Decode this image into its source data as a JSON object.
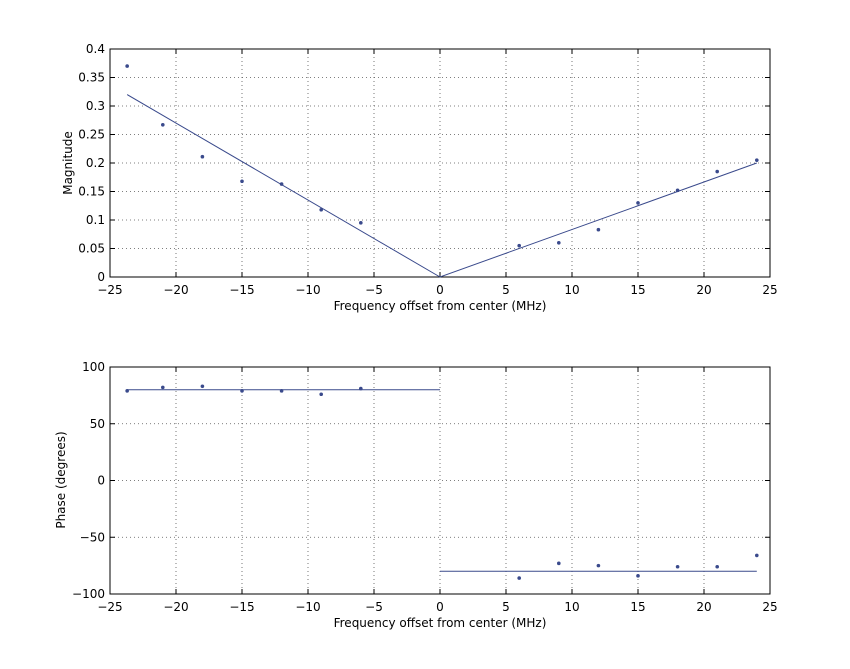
{
  "chart_data": [
    {
      "type": "scatter",
      "title": "",
      "xlabel": "Frequency offset from center (MHz)",
      "ylabel": "Magnitude",
      "xlim": [
        -25,
        25
      ],
      "ylim": [
        0,
        0.4
      ],
      "grid": true,
      "xticks": [
        -25,
        -20,
        -15,
        -10,
        -5,
        0,
        5,
        10,
        15,
        20,
        25
      ],
      "yticks": [
        0,
        0.05,
        0.1,
        0.15,
        0.2,
        0.25,
        0.3,
        0.35,
        0.4
      ],
      "ytick_labels": [
        "0",
        "0.05",
        "0.1",
        "0.15",
        "0.2",
        "0.25",
        "0.3",
        "0.35",
        "0.4"
      ],
      "series": [
        {
          "name": "measured",
          "style": "dots",
          "x": [
            -23.7,
            -21,
            -18,
            -15,
            -12,
            -9,
            -6,
            6,
            9,
            12,
            15,
            18,
            21,
            24
          ],
          "y": [
            0.37,
            0.267,
            0.211,
            0.168,
            0.163,
            0.118,
            0.095,
            0.055,
            0.06,
            0.083,
            0.13,
            0.152,
            0.185,
            0.205
          ]
        },
        {
          "name": "fit",
          "style": "line",
          "x": [
            -23.7,
            0,
            24
          ],
          "y": [
            0.32,
            0.0,
            0.2
          ]
        }
      ]
    },
    {
      "type": "scatter",
      "title": "",
      "xlabel": "Frequency offset from center (MHz)",
      "ylabel": "Phase (degrees)",
      "xlim": [
        -25,
        25
      ],
      "ylim": [
        -100,
        100
      ],
      "grid": true,
      "xticks": [
        -25,
        -20,
        -15,
        -10,
        -5,
        0,
        5,
        10,
        15,
        20,
        25
      ],
      "yticks": [
        -100,
        -50,
        0,
        50,
        100
      ],
      "ytick_labels": [
        "−100",
        "−50",
        "0",
        "50",
        "100"
      ],
      "series": [
        {
          "name": "measured",
          "style": "dots",
          "x": [
            -23.7,
            -21,
            -18,
            -15,
            -12,
            -9,
            -6,
            6,
            9,
            12,
            15,
            18,
            21,
            24
          ],
          "y": [
            79,
            82,
            83,
            79,
            79,
            76,
            81,
            -86,
            -73,
            -75,
            -84,
            -76,
            -76,
            -66
          ]
        },
        {
          "name": "fit-negative-band",
          "style": "line",
          "x": [
            -23.7,
            0
          ],
          "y": [
            80,
            80
          ]
        },
        {
          "name": "fit-positive-band",
          "style": "line",
          "x": [
            0,
            24
          ],
          "y": [
            -80,
            -80
          ]
        }
      ]
    }
  ],
  "colors": {
    "series": "#3a4a8c",
    "axis": "#000000",
    "grid": "#555555"
  },
  "plots": {
    "top": {
      "xlabel": "Frequency offset from center (MHz)",
      "ylabel": "Magnitude"
    },
    "bottom": {
      "xlabel": "Frequency offset from center (MHz)",
      "ylabel": "Phase (degrees)"
    }
  },
  "xtick_labels": [
    "−25",
    "−20",
    "−15",
    "−10",
    "−5",
    "0",
    "5",
    "10",
    "15",
    "20",
    "25"
  ]
}
